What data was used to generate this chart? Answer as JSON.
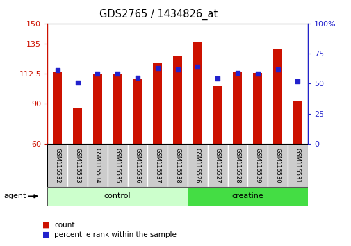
{
  "title": "GDS2765 / 1434826_at",
  "categories": [
    "GSM115532",
    "GSM115533",
    "GSM115534",
    "GSM115535",
    "GSM115536",
    "GSM115537",
    "GSM115538",
    "GSM115526",
    "GSM115527",
    "GSM115528",
    "GSM115529",
    "GSM115530",
    "GSM115531"
  ],
  "counts": [
    114,
    87,
    112,
    112,
    109,
    120,
    126,
    136,
    103,
    114,
    113,
    131,
    92
  ],
  "percentiles": [
    61,
    51,
    58,
    58,
    55,
    63,
    62,
    64,
    54,
    59,
    58,
    62,
    52
  ],
  "bar_color": "#cc1100",
  "dot_color": "#2222cc",
  "left_ylim": [
    60,
    150
  ],
  "right_ylim": [
    0,
    100
  ],
  "left_yticks": [
    60,
    90,
    112.5,
    135,
    150
  ],
  "right_yticks": [
    0,
    25,
    50,
    75,
    100
  ],
  "left_ytick_labels": [
    "60",
    "90",
    "112.5",
    "135",
    "150"
  ],
  "right_ytick_labels": [
    "0",
    "25",
    "50",
    "75",
    "100%"
  ],
  "groups": [
    {
      "label": "control",
      "start": 0,
      "end": 6,
      "color": "#ccffcc"
    },
    {
      "label": "creatine",
      "start": 7,
      "end": 12,
      "color": "#44dd44"
    }
  ],
  "group_row_label": "agent",
  "legend_count_label": "count",
  "legend_pct_label": "percentile rank within the sample",
  "bar_bottom": 60,
  "tick_label_bg": "#cccccc"
}
